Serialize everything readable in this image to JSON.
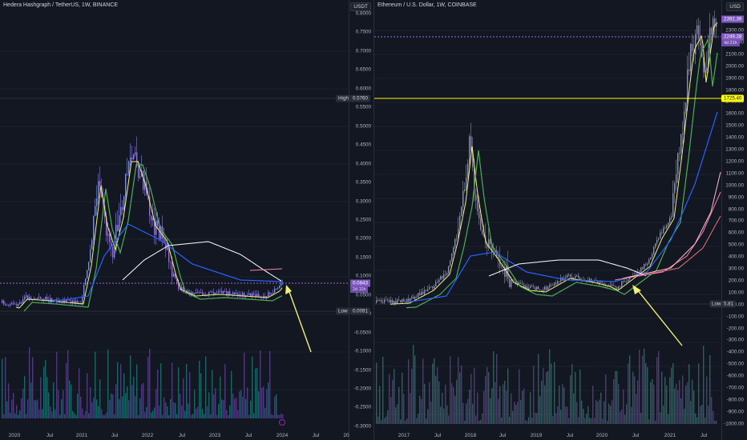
{
  "left": {
    "title": "Hedera Hashgraph / TetherUS, 1W, BINANCE",
    "currency": "USDT",
    "y_ticks": [
      "0.8000",
      "0.7500",
      "0.7000",
      "0.6500",
      "0.6000",
      "0.5500",
      "0.5000",
      "0.4500",
      "0.4000",
      "0.3500",
      "0.3000",
      "0.2500",
      "0.2000",
      "0.1500",
      "0.1000",
      "0.0500",
      "0.0000",
      "-0.0500",
      "-0.1000",
      "-0.1500",
      "-0.2000",
      "-0.2500",
      "-0.3000"
    ],
    "x_ticks": [
      "2020",
      "Jul",
      "2021",
      "Jul",
      "2022",
      "Jul",
      "2023",
      "Jul",
      "2024",
      "Jul",
      "20"
    ],
    "high_label": "High",
    "high_value": "0.5760",
    "low_label": "Low",
    "low_value": "0.0091",
    "price_value": "0.0843",
    "price_sub": "2d 11h",
    "colors": {
      "price": "#7e57c2",
      "arrow": "#f0f075"
    }
  },
  "right": {
    "title": "Ethereum / U.S. Dollar, 1W, COINBASE",
    "currency": "USD",
    "y_ticks": [
      "2300.00",
      "2200.00",
      "2100.00",
      "2000.00",
      "1900.00",
      "1800.00",
      "1700.00",
      "1600.00",
      "1500.00",
      "1400.00",
      "1300.00",
      "1200.00",
      "1100.00",
      "1000.00",
      "900.00",
      "800.00",
      "700.00",
      "600.00",
      "500.00",
      "400.00",
      "300.00",
      "200.00",
      "100.00",
      "0.00",
      "-100.00",
      "-200.00",
      "-300.00",
      "-400.00",
      "-500.00",
      "-600.00",
      "-700.00",
      "-800.00",
      "-900.00",
      "-1000.00"
    ],
    "x_ticks": [
      "2017",
      "Jul",
      "2018",
      "Jul",
      "2019",
      "Jul",
      "2020",
      "Jul",
      "2021",
      "Jul"
    ],
    "tag_top": "2392.39",
    "price_value": "2249.28",
    "price_sub": "4d 21h",
    "yellow_value": "1725.40",
    "low_label": "Low",
    "low_value": "5.81",
    "colors": {
      "price": "#7e57c2",
      "yellow": "#ffff00"
    }
  }
}
